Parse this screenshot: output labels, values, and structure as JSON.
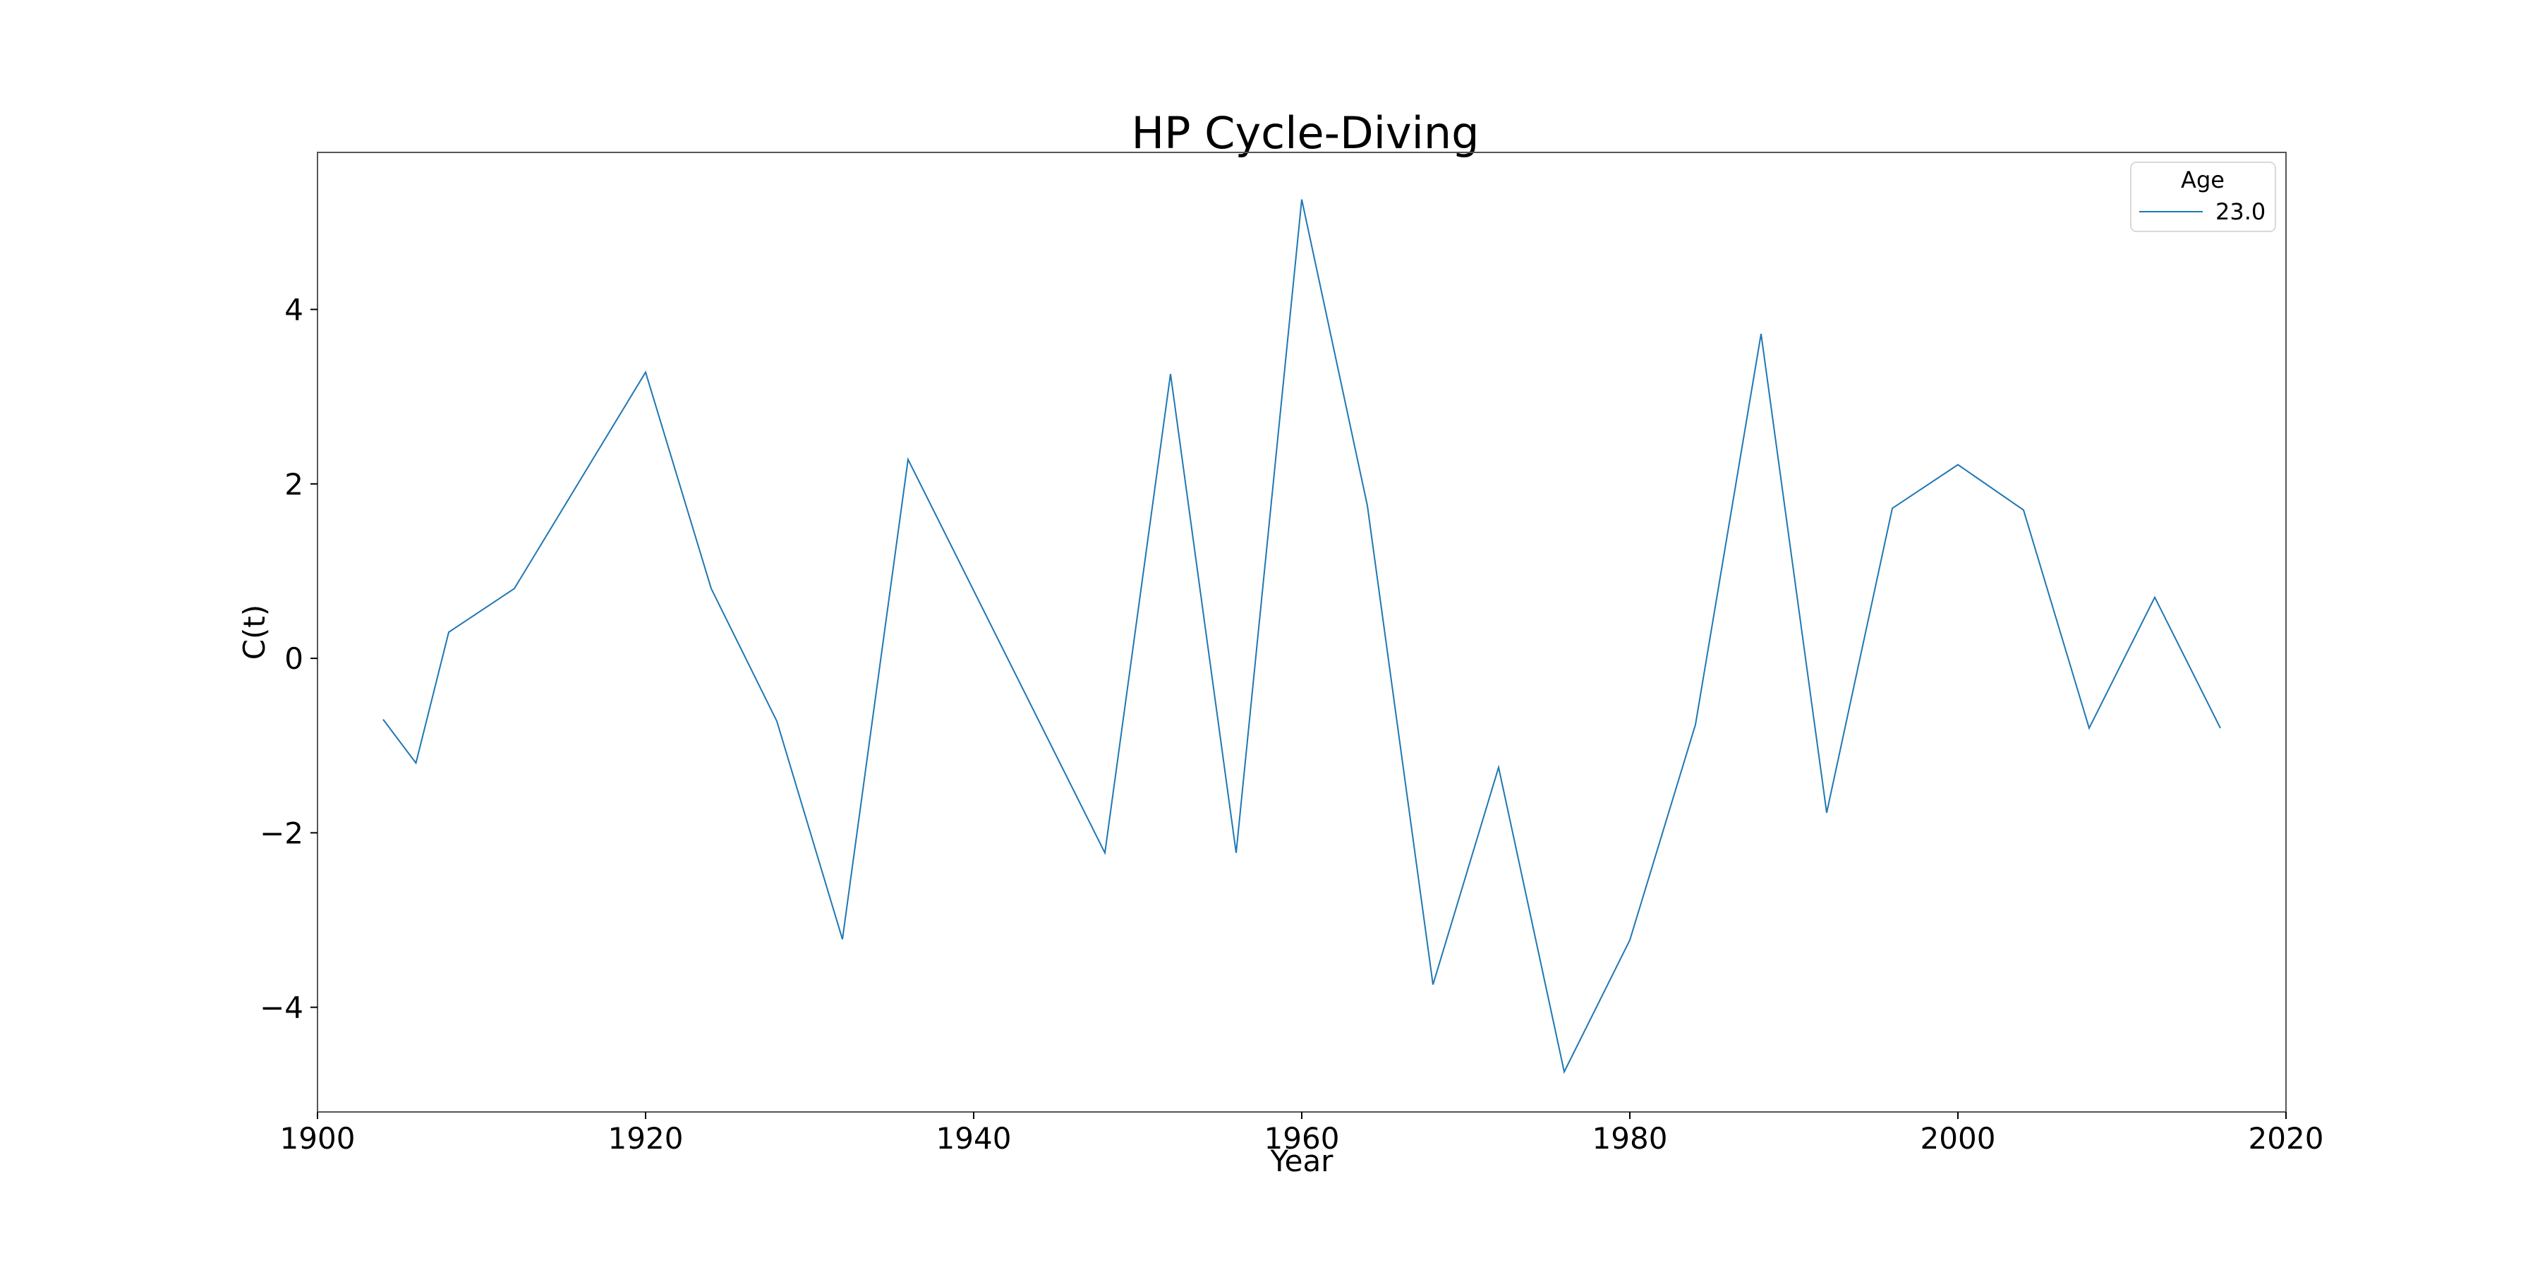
{
  "chart_data": {
    "type": "line",
    "title": "HP Cycle-Diving",
    "xlabel": "Year",
    "ylabel": "C(t)",
    "xlim": [
      1900,
      2020
    ],
    "ylim": [
      -5.2,
      5.8
    ],
    "xticks": [
      1900,
      1920,
      1940,
      1960,
      1980,
      2000,
      2020
    ],
    "yticks": [
      -4,
      -2,
      0,
      2,
      4
    ],
    "xtick_labels": [
      "1900",
      "1920",
      "1940",
      "1960",
      "1980",
      "2000",
      "2020"
    ],
    "ytick_labels": [
      "−4",
      "−2",
      "0",
      "2",
      "4"
    ],
    "grid": false,
    "legend": {
      "title": "Age",
      "position": "top-right"
    },
    "series": [
      {
        "name": "23.0",
        "color": "#1f77b4",
        "x": [
          1904,
          1906,
          1908,
          1912,
          1920,
          1924,
          1928,
          1932,
          1936,
          1948,
          1952,
          1956,
          1960,
          1964,
          1968,
          1972,
          1976,
          1980,
          1984,
          1988,
          1992,
          1996,
          2000,
          2004,
          2008,
          2012,
          2016
        ],
        "y": [
          -0.7,
          -1.2,
          0.3,
          0.8,
          3.28,
          0.8,
          -0.72,
          -3.22,
          2.28,
          -2.23,
          3.26,
          -2.23,
          5.26,
          1.75,
          -3.74,
          -1.25,
          -4.74,
          -3.23,
          -0.76,
          3.72,
          -1.77,
          1.72,
          2.22,
          1.7,
          -0.8,
          0.7,
          -0.8
        ]
      }
    ]
  }
}
